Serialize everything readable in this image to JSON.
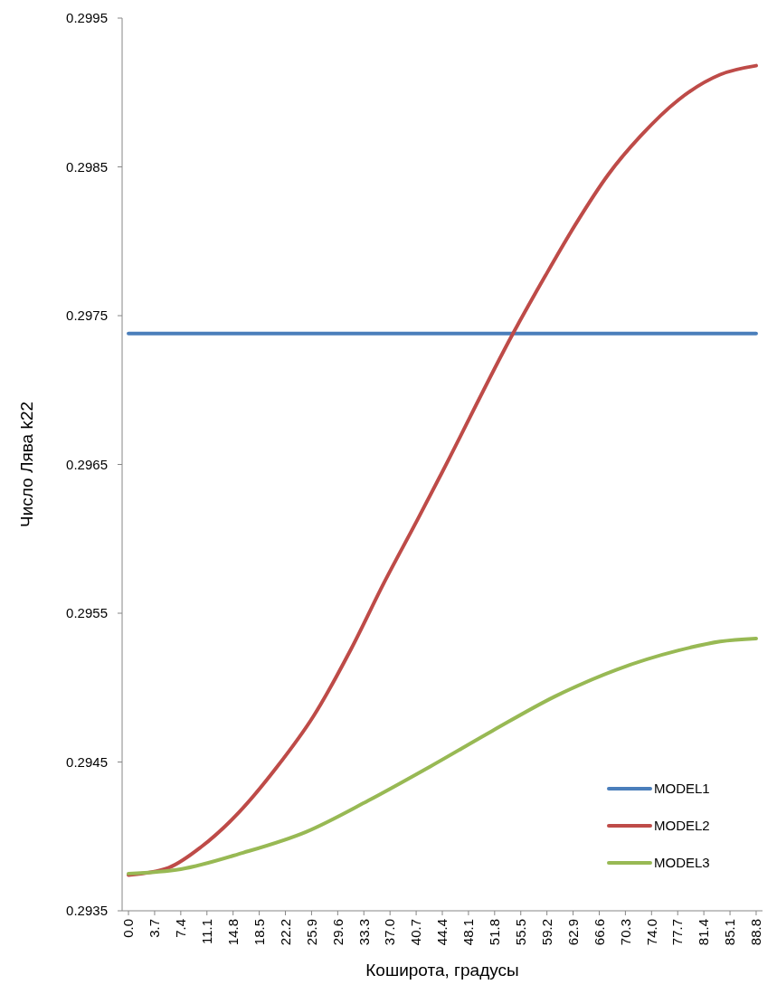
{
  "chart_data": {
    "type": "line",
    "xlabel": "Коширота, градусы",
    "ylabel": "Число Лява k22",
    "xlim": [
      -0.9,
      89.7
    ],
    "xticks": [
      {
        "value": 0,
        "label": "0.0"
      },
      3.7,
      7.4,
      11.1,
      14.8,
      18.5,
      22.2,
      25.9,
      29.6,
      33.3,
      {
        "value": 37,
        "label": "37.0"
      },
      40.7,
      44.4,
      48.1,
      51.8,
      55.5,
      59.2,
      62.9,
      66.6,
      70.3,
      {
        "value": 74,
        "label": "74.0"
      },
      77.7,
      81.4,
      85.1,
      88.8
    ],
    "ylim": [
      0.2935,
      0.2995
    ],
    "yticks": [
      0.2935,
      0.2945,
      0.2955,
      0.2965,
      0.2975,
      0.2985,
      0.2995
    ],
    "grid": false,
    "legend": "bottom right",
    "marker": "none",
    "line_style": "solid",
    "series": [
      {
        "name": "MODEL1",
        "color": "#4a7ebb",
        "x": [
          0,
          44.4,
          88.8
        ],
        "values": [
          0.29738,
          0.29738,
          0.29738
        ]
      },
      {
        "name": "MODEL2",
        "color": "#be4b48",
        "x": [
          0,
          5.7,
          10.3,
          15.6,
          20.9,
          26.2,
          31.5,
          36.1,
          40.9,
          44.4,
          54.4,
          59.0,
          63.2,
          67.9,
          72.5,
          77.8,
          83.7,
          88.8
        ],
        "values": [
          0.29374,
          0.29379,
          0.29393,
          0.29416,
          0.29446,
          0.29481,
          0.29526,
          0.2957,
          0.29613,
          0.29645,
          0.29738,
          0.29777,
          0.29811,
          0.29845,
          0.29871,
          0.29895,
          0.29912,
          0.29918
        ]
      },
      {
        "name": "MODEL3",
        "color": "#98b954",
        "x": [
          0,
          7.4,
          16.2,
          25.1,
          33.9,
          42.7,
          51.5,
          60.3,
          69.0,
          77.8,
          83.7,
          88.8
        ],
        "values": [
          0.29375,
          0.29378,
          0.29389,
          0.29403,
          0.29424,
          0.29447,
          0.29471,
          0.29494,
          0.29512,
          0.29525,
          0.29531,
          0.29533
        ]
      }
    ]
  }
}
